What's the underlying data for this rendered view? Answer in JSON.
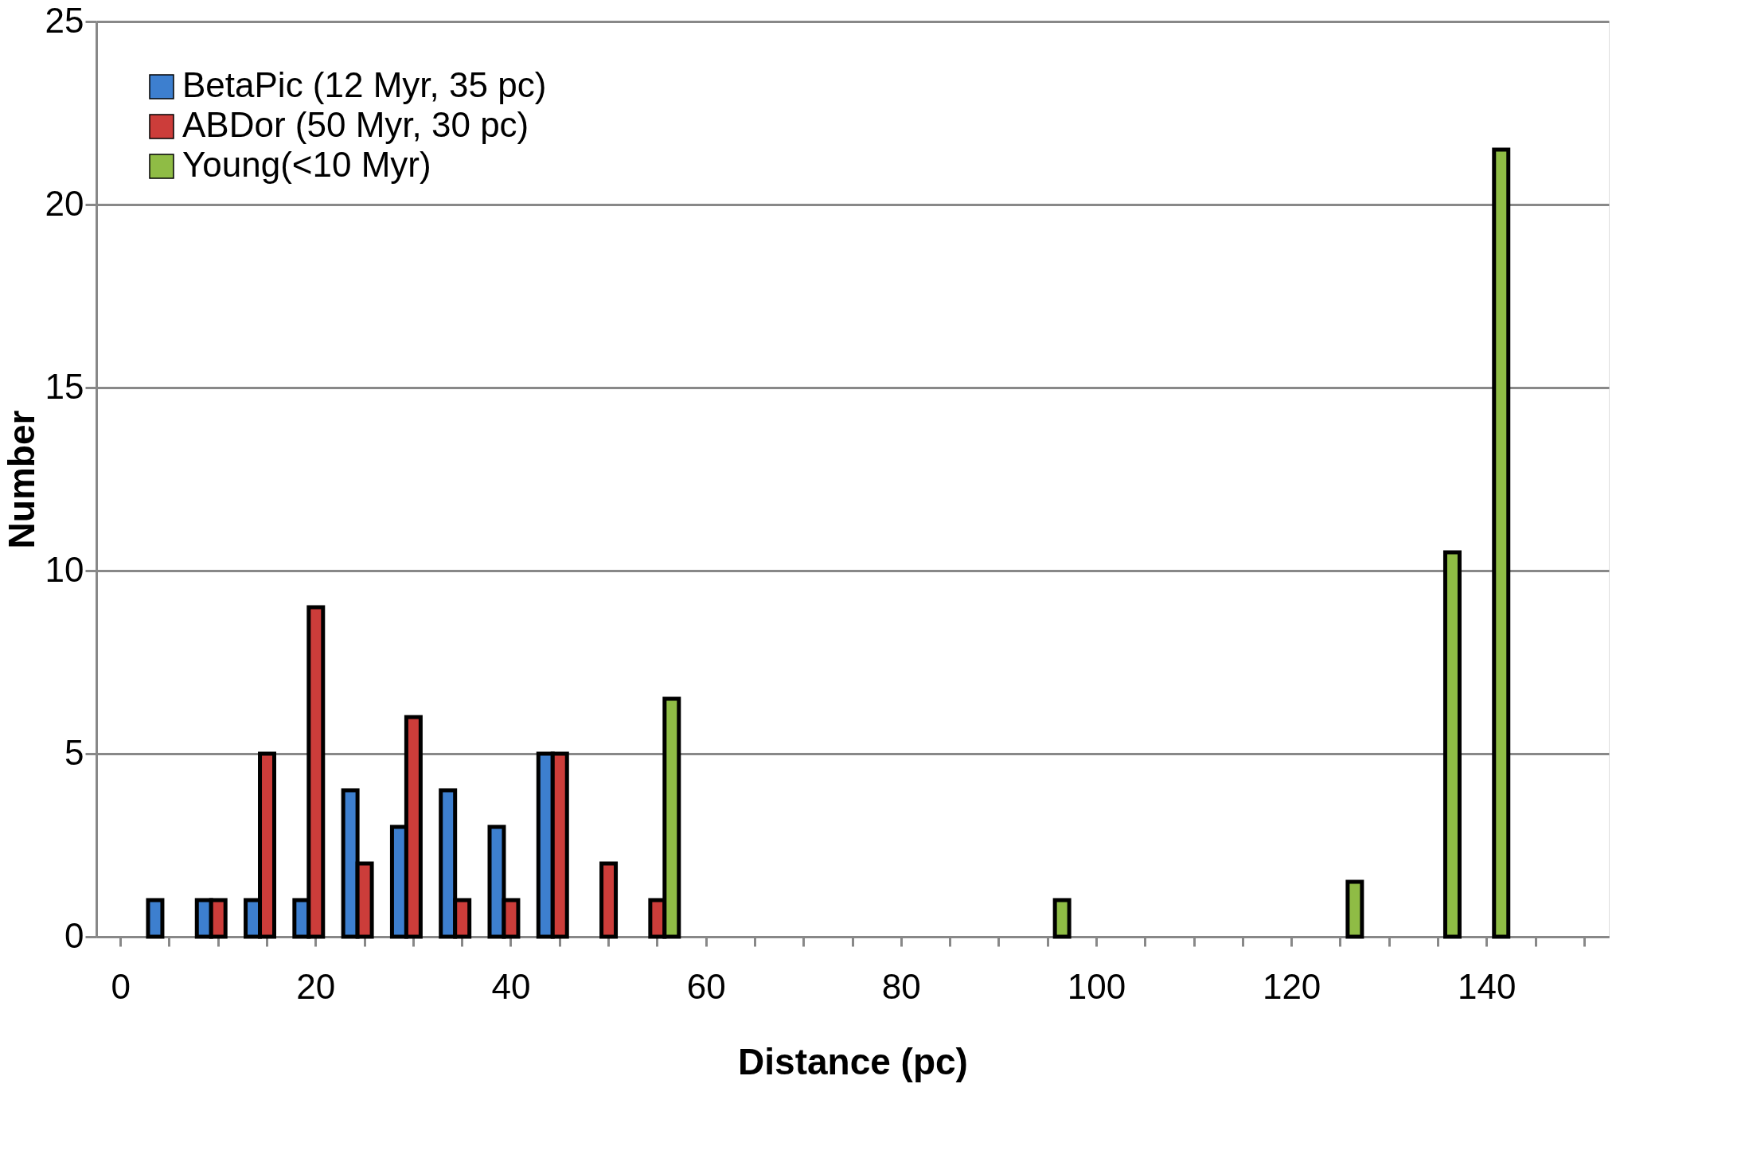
{
  "chart_data": {
    "type": "bar",
    "xlabel": "Distance (pc)",
    "ylabel": "Number",
    "categories": [
      "0",
      null,
      null,
      null,
      "20",
      null,
      null,
      null,
      "40",
      null,
      null,
      null,
      "60",
      null,
      null,
      null,
      "80",
      null,
      null,
      null,
      "100",
      null,
      null,
      null,
      "120",
      null,
      null,
      null,
      "140",
      null,
      null
    ],
    "series": [
      {
        "name": "BetaPic (12 Myr, 35 pc)",
        "color": "#3d7fcf",
        "values": [
          null,
          1,
          1,
          1,
          1,
          4,
          3,
          4,
          3,
          5,
          null,
          null,
          null,
          null,
          null,
          null,
          null,
          null,
          null,
          null,
          null,
          null,
          null,
          null,
          null,
          null,
          null,
          null,
          null,
          null,
          null
        ]
      },
      {
        "name": "ABDor (50 Myr, 30 pc)",
        "color": "#cc3d3a",
        "values": [
          null,
          null,
          1,
          5,
          9,
          2,
          6,
          1,
          1,
          5,
          2,
          1,
          null,
          null,
          null,
          null,
          null,
          null,
          null,
          null,
          null,
          null,
          null,
          null,
          null,
          null,
          null,
          null,
          null,
          null,
          null
        ]
      },
      {
        "name": "Young(<10 Myr)",
        "color": "#8fbc45",
        "values": [
          null,
          null,
          null,
          null,
          null,
          null,
          null,
          null,
          null,
          null,
          null,
          6.5,
          null,
          null,
          null,
          null,
          null,
          null,
          null,
          1,
          null,
          null,
          null,
          null,
          null,
          1.5,
          null,
          10.5,
          21.5,
          null,
          null
        ]
      }
    ],
    "ylim": [
      0,
      25
    ],
    "yticks": [
      0,
      5,
      10,
      15,
      20,
      25
    ],
    "grid": "y",
    "legend": "top left"
  }
}
